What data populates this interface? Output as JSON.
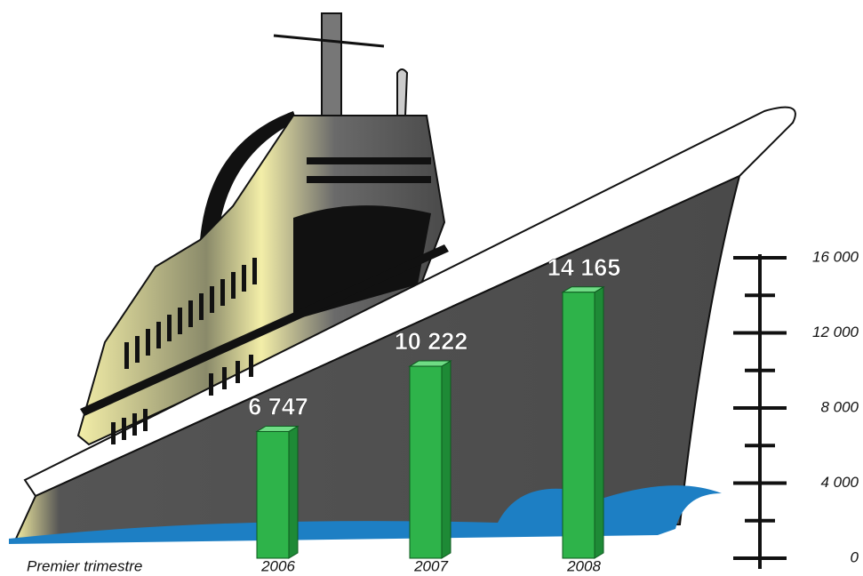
{
  "chart_data": {
    "type": "bar",
    "x_label": "Premier trimestre",
    "categories": [
      "2006",
      "2007",
      "2008"
    ],
    "values": [
      6747,
      10222,
      14165
    ],
    "value_labels": [
      "6 747",
      "10 222",
      "14 165"
    ],
    "color": "#2eb34a",
    "ylim": [
      0,
      16000
    ],
    "yticks": [
      0,
      {
        "value": 4000,
        "label": "4 000"
      },
      {
        "value": 8000,
        "label": "8 000"
      },
      {
        "value": 12000,
        "label": "12 000"
      },
      {
        "value": 16000,
        "label": "16 000"
      }
    ],
    "yminorticks": [
      2000,
      6000,
      10000,
      14000
    ]
  }
}
